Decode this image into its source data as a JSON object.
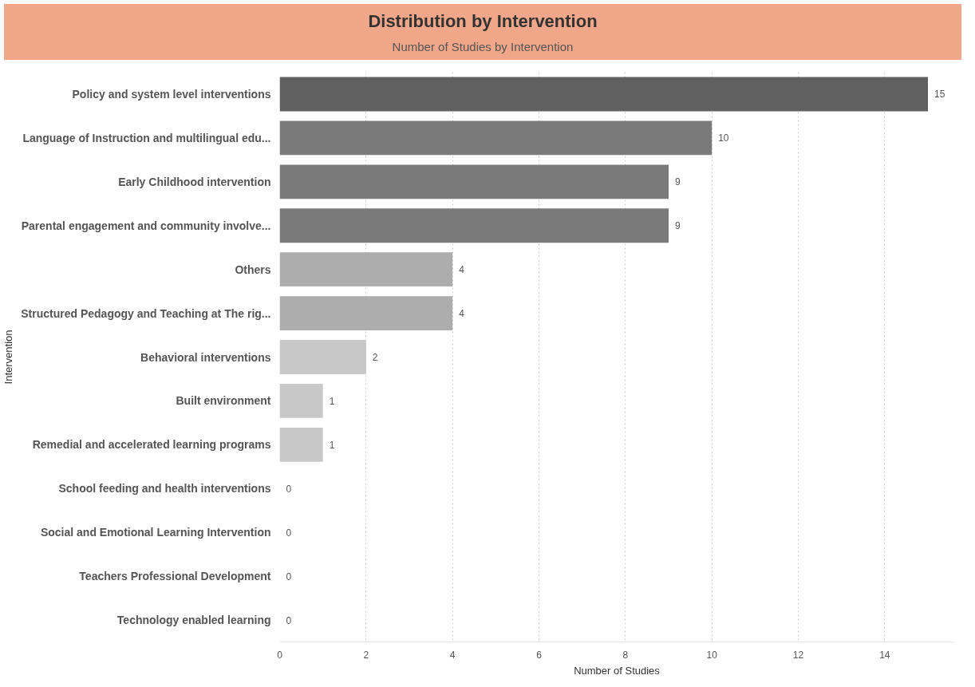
{
  "chart_data": {
    "type": "bar",
    "orientation": "horizontal",
    "title": "Distribution by Intervention",
    "subtitle": "Number of Studies by Intervention",
    "xlabel": "Number of Studies",
    "ylabel": "Intervention",
    "categories": [
      "Policy and system level interventions",
      "Language of Instruction and multilingual edu...",
      "Early Childhood intervention",
      "Parental engagement and community involve...",
      "Others",
      "Structured Pedagogy and Teaching at The rig...",
      "Behavioral interventions",
      "Built environment",
      "Remedial and accelerated learning programs",
      "School feeding and health interventions",
      "Social and Emotional Learning Intervention",
      "Teachers Professional Development",
      "Technology enabled learning"
    ],
    "values": [
      15,
      10,
      9,
      9,
      4,
      4,
      2,
      1,
      1,
      0,
      0,
      0,
      0
    ],
    "colors": [
      "#606060",
      "#7a7a7a",
      "#7a7a7a",
      "#7a7a7a",
      "#adadad",
      "#adadad",
      "#c8c8c8",
      "#c8c8c8",
      "#c8c8c8",
      "#c8c8c8",
      "#c8c8c8",
      "#c8c8c8",
      "#c8c8c8"
    ],
    "xlim": [
      0,
      15.6
    ],
    "xticks": [
      0,
      2,
      4,
      6,
      8,
      10,
      12,
      14
    ],
    "grid": "x",
    "data_labels": true
  }
}
